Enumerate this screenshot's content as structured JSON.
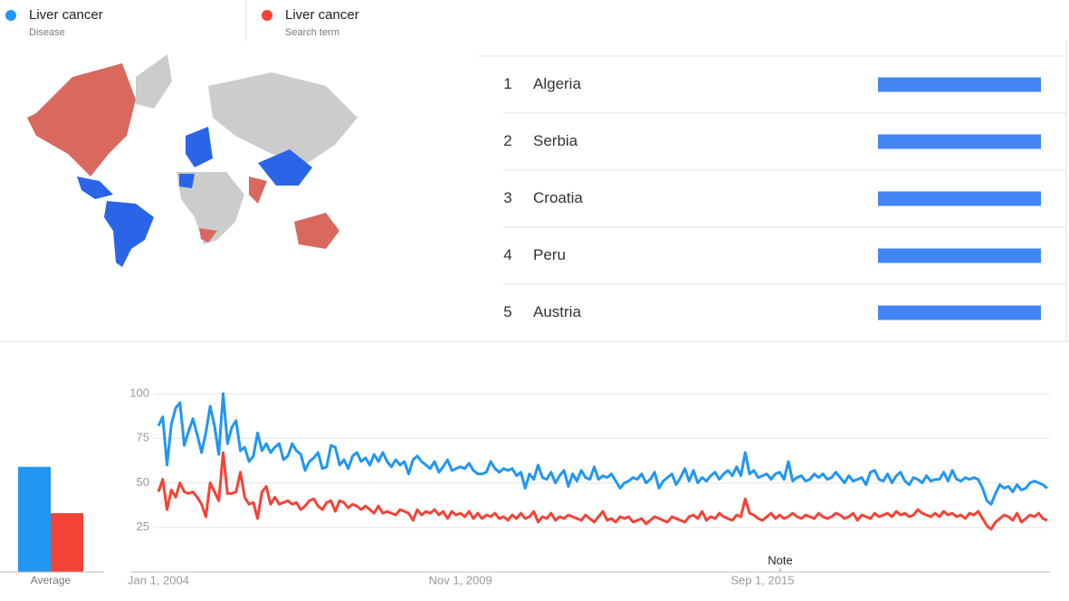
{
  "chart_data": [
    {
      "type": "ranking",
      "ranks": [
        1,
        2,
        3,
        4,
        5
      ],
      "categories": [
        "Algeria",
        "Serbia",
        "Croatia",
        "Peru",
        "Austria"
      ],
      "values": [
        100,
        100,
        100,
        100,
        100
      ],
      "xlim": [
        0,
        100
      ],
      "color": "#4285f4"
    },
    {
      "type": "bar",
      "categories": [
        "Average"
      ],
      "series": [
        {
          "color": "#2196f3",
          "values": [
            59
          ]
        },
        {
          "color": "#f44336",
          "values": [
            33
          ]
        }
      ],
      "ylim": [
        0,
        100
      ]
    },
    {
      "type": "line",
      "annotation": "Note",
      "ylim": [
        0,
        100
      ],
      "yticks": [
        25,
        50,
        75,
        100
      ],
      "grid": true,
      "categories": [
        "Jan 1, 2004",
        null,
        null,
        null,
        null,
        null,
        null,
        null,
        null,
        null,
        null,
        null,
        null,
        null,
        null,
        null,
        null,
        null,
        null,
        null,
        null,
        null,
        null,
        null,
        null,
        null,
        null,
        null,
        null,
        null,
        null,
        null,
        null,
        null,
        null,
        null,
        null,
        null,
        null,
        null,
        null,
        null,
        null,
        null,
        null,
        null,
        null,
        null,
        null,
        null,
        null,
        null,
        null,
        null,
        null,
        null,
        null,
        null,
        null,
        null,
        null,
        null,
        null,
        null,
        null,
        null,
        null,
        null,
        null,
        null,
        "Nov 1, 2009",
        null,
        null,
        null,
        null,
        null,
        null,
        null,
        null,
        null,
        null,
        null,
        null,
        null,
        null,
        null,
        null,
        null,
        null,
        null,
        null,
        null,
        null,
        null,
        null,
        null,
        null,
        null,
        null,
        null,
        null,
        null,
        null,
        null,
        null,
        null,
        null,
        null,
        null,
        null,
        null,
        null,
        null,
        null,
        null,
        null,
        null,
        null,
        null,
        null,
        null,
        null,
        null,
        null,
        null,
        null,
        null,
        null,
        null,
        null,
        null,
        null,
        null,
        null,
        null,
        null,
        null,
        null,
        null,
        null,
        "Sep 1, 2015",
        null,
        null,
        null,
        null,
        null,
        null,
        null,
        null,
        null,
        null,
        null,
        null,
        null,
        null,
        null,
        null,
        null,
        null,
        null,
        null,
        null,
        null,
        null,
        null,
        null,
        null,
        null,
        null,
        null,
        null,
        null,
        null,
        null,
        null,
        null,
        null,
        null,
        null,
        null,
        null,
        null,
        null,
        null,
        null,
        null,
        null,
        null,
        null,
        null,
        null,
        null,
        null,
        null,
        null,
        null,
        null,
        null,
        null,
        null,
        null,
        null,
        null,
        null,
        null,
        null,
        null
      ],
      "series": [
        {
          "name": "Liver cancer",
          "detail": "Disease",
          "color": "#2196f3",
          "values": [
            82,
            87,
            60,
            83,
            92,
            95,
            71,
            79,
            86,
            77,
            67,
            78,
            93,
            82,
            66,
            100,
            72,
            81,
            85,
            68,
            70,
            62,
            65,
            78,
            68,
            72,
            67,
            70,
            72,
            63,
            65,
            72,
            68,
            66,
            57,
            62,
            64,
            67,
            58,
            59,
            71,
            70,
            60,
            63,
            58,
            65,
            67,
            62,
            64,
            60,
            66,
            62,
            67,
            62,
            59,
            63,
            60,
            62,
            55,
            63,
            65,
            62,
            60,
            58,
            62,
            56,
            59,
            63,
            57,
            58,
            59,
            58,
            61,
            57,
            55,
            55,
            56,
            62,
            58,
            56,
            58,
            57,
            58,
            54,
            56,
            47,
            55,
            52,
            60,
            53,
            52,
            56,
            50,
            54,
            57,
            48,
            55,
            51,
            57,
            53,
            52,
            59,
            52,
            54,
            53,
            55,
            51,
            47,
            50,
            51,
            53,
            52,
            55,
            50,
            52,
            56,
            47,
            51,
            53,
            55,
            49,
            53,
            58,
            51,
            57,
            50,
            53,
            51,
            54,
            56,
            52,
            55,
            57,
            54,
            59,
            54,
            67,
            55,
            57,
            53,
            54,
            55,
            52,
            55,
            56,
            52,
            62,
            51,
            53,
            54,
            51,
            52,
            55,
            53,
            55,
            52,
            53,
            56,
            53,
            50,
            54,
            51,
            52,
            53,
            49,
            56,
            57,
            52,
            51,
            55,
            50,
            54,
            56,
            51,
            49,
            53,
            52,
            50,
            54,
            51,
            52,
            52,
            56,
            51,
            57,
            52,
            51,
            53,
            52,
            53,
            52,
            47,
            40,
            38,
            44,
            49,
            47,
            48,
            45,
            49,
            46,
            47,
            50,
            51,
            50,
            49,
            47
          ]
        },
        {
          "name": "Liver cancer",
          "detail": "Search term",
          "color": "#f44336",
          "values": [
            45,
            52,
            35,
            46,
            42,
            50,
            45,
            44,
            45,
            42,
            38,
            31,
            50,
            45,
            40,
            67,
            44,
            44,
            45,
            56,
            42,
            38,
            39,
            30,
            45,
            48,
            38,
            42,
            38,
            39,
            40,
            38,
            39,
            35,
            37,
            40,
            41,
            37,
            35,
            39,
            40,
            34,
            40,
            39,
            36,
            38,
            37,
            35,
            37,
            35,
            33,
            37,
            33,
            34,
            33,
            32,
            35,
            34,
            33,
            29,
            35,
            32,
            34,
            33,
            35,
            32,
            34,
            30,
            34,
            32,
            33,
            31,
            34,
            30,
            33,
            30,
            32,
            31,
            33,
            30,
            31,
            29,
            32,
            30,
            33,
            30,
            31,
            34,
            28,
            31,
            30,
            33,
            29,
            31,
            30,
            32,
            31,
            30,
            29,
            32,
            30,
            28,
            31,
            34,
            29,
            30,
            28,
            31,
            30,
            31,
            28,
            29,
            30,
            27,
            29,
            31,
            30,
            29,
            28,
            31,
            30,
            29,
            28,
            31,
            32,
            30,
            34,
            29,
            31,
            30,
            33,
            31,
            30,
            29,
            32,
            31,
            41,
            33,
            32,
            30,
            29,
            31,
            33,
            30,
            32,
            30,
            31,
            33,
            31,
            30,
            32,
            31,
            30,
            33,
            31,
            30,
            31,
            33,
            32,
            30,
            31,
            33,
            29,
            32,
            31,
            30,
            33,
            31,
            32,
            33,
            31,
            34,
            32,
            33,
            31,
            32,
            35,
            33,
            32,
            31,
            33,
            31,
            34,
            32,
            33,
            31,
            32,
            30,
            33,
            32,
            34,
            30,
            26,
            24,
            28,
            30,
            32,
            31,
            29,
            33,
            28,
            30,
            32,
            31,
            33,
            30,
            29
          ]
        }
      ]
    }
  ]
}
